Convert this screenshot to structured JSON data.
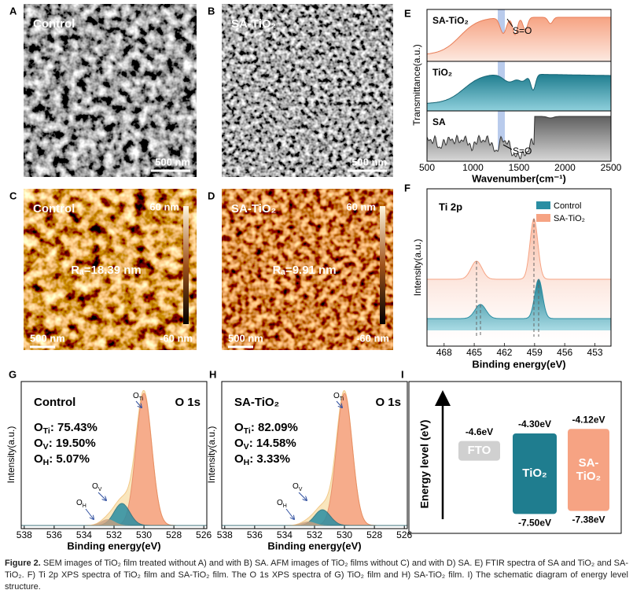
{
  "panels": {
    "A": {
      "letter": "A",
      "label": "Control",
      "scale_bar": "500 nm"
    },
    "B": {
      "letter": "B",
      "label": "SA-TiO₂",
      "scale_bar": "500 nm"
    },
    "C": {
      "letter": "C",
      "label": "Control",
      "roughness": "Rₐ=18.39 nm",
      "scale_bar": "500 nm",
      "colorbar_max": "60 nm",
      "colorbar_min": "-60 nm"
    },
    "D": {
      "letter": "D",
      "label": "SA-TiO₂",
      "roughness": "Rₐ=9.91 nm",
      "scale_bar": "500 nm",
      "colorbar_max": "60 nm",
      "colorbar_min": "-60 nm"
    },
    "E": {
      "letter": "E",
      "xlabel": "Wavenumber(cm⁻¹)",
      "ylabel": "Transmittance(a.u.)",
      "xlim": [
        500,
        2500
      ],
      "xticks": [
        500,
        1000,
        1500,
        2000,
        2500
      ],
      "traces": [
        "SA-TiO₂",
        "TiO₂",
        "SA"
      ],
      "annotations": [
        "S=O",
        "S=O"
      ]
    },
    "F": {
      "letter": "F",
      "title": "Ti 2p",
      "xlabel": "Binding energy(eV)",
      "ylabel": "Intensity(a.u.)",
      "xlim": [
        469.7,
        451.4
      ],
      "xticks": [
        468,
        465,
        462,
        459,
        456,
        453
      ],
      "series": [
        {
          "name": "Control",
          "color": "#2a8ea3"
        },
        {
          "name": "SA-TiO₂",
          "color": "#f6a383"
        }
      ]
    },
    "G": {
      "letter": "G",
      "title": "Control",
      "subtitle": "O 1s",
      "xlabel": "Binding energy(eV)",
      "ylabel": "Intensity(a.u.)",
      "xlim": [
        538.2,
        525.8
      ],
      "xticks": [
        538,
        536,
        534,
        532,
        530,
        528,
        526
      ],
      "stats": [
        {
          "symbol": "O",
          "sub": "Ti",
          "rest": ":  75.43%"
        },
        {
          "symbol": "O",
          "sub": "V",
          "rest": ":  19.50%"
        },
        {
          "symbol": "O",
          "sub": "H",
          "rest": ":  5.07%"
        }
      ],
      "peaks": [
        {
          "symbol": "O",
          "sub": "Ti"
        },
        {
          "symbol": "O",
          "sub": "V"
        },
        {
          "symbol": "O",
          "sub": "H"
        }
      ]
    },
    "H": {
      "letter": "H",
      "title": "SA-TiO₂",
      "subtitle": "O 1s",
      "xlabel": "Binding energy(eV)",
      "ylabel": "Intensity(a.u.)",
      "xlim": [
        538.2,
        525.8
      ],
      "xticks": [
        538,
        536,
        534,
        532,
        530,
        528,
        526
      ],
      "stats": [
        {
          "symbol": "O",
          "sub": "Ti",
          "rest": ":  82.09%"
        },
        {
          "symbol": "O",
          "sub": "V",
          "rest": ":  14.58%"
        },
        {
          "symbol": "O",
          "sub": "H",
          "rest": ":  3.33%"
        }
      ],
      "peaks": [
        {
          "symbol": "O",
          "sub": "Ti"
        },
        {
          "symbol": "O",
          "sub": "V"
        },
        {
          "symbol": "O",
          "sub": "H"
        }
      ]
    },
    "I": {
      "letter": "I",
      "ylabel": "Energy level (eV)",
      "levels": [
        {
          "name": [
            "FTO"
          ],
          "color": "#d0d0d0",
          "top": -4.6,
          "top_label": "-4.6eV"
        },
        {
          "name": [
            "TiO₂"
          ],
          "color": "#1f7d8f",
          "top": -4.3,
          "top_label": "-4.30eV",
          "bottom": -7.5,
          "bottom_label": "-7.50eV"
        },
        {
          "name": [
            "SA-",
            "TiO₂"
          ],
          "color": "#f6a383",
          "top": -4.12,
          "top_label": "-4.12eV",
          "bottom": -7.38,
          "bottom_label": "-7.38eV"
        }
      ]
    }
  },
  "caption": {
    "label": "Figure 2.",
    "text": "SEM images of TiO₂ film treated without A) and with B) SA. AFM images of TiO₂ films without C) and with D) SA. E) FTIR spectra of SA and TiO₂ and SA-TiO₂. F) Ti 2p XPS spectra of TiO₂ film and SA-TiO₂ film. The O 1s XPS spectra of G) TiO₂ film and H) SA-TiO₂ film. I) The schematic diagram of energy level structure."
  }
}
